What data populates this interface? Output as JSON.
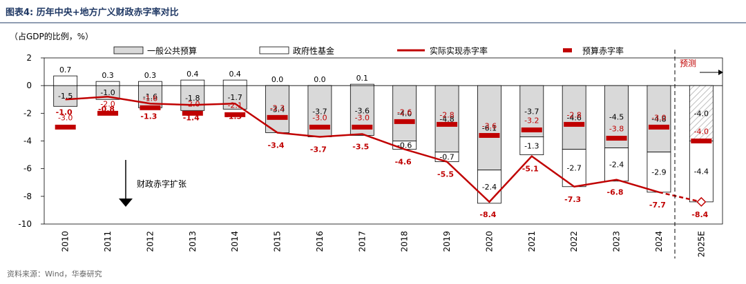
{
  "header": {
    "title": "图表4:  历年中央+地方广义财政赤字率对比"
  },
  "chart_data": {
    "type": "bar",
    "title": "历年中央+地方广义财政赤字率对比",
    "unit_label": "（占GDP的比例，%）",
    "categories": [
      "2010",
      "2011",
      "2012",
      "2013",
      "2014",
      "2015",
      "2016",
      "2017",
      "2018",
      "2019",
      "2020",
      "2021",
      "2022",
      "2023",
      "2024",
      "2025E"
    ],
    "series": [
      {
        "name": "一般公共预算",
        "type": "stacked-bar",
        "values": [
          -1.5,
          -1.0,
          -1.6,
          -1.8,
          -1.7,
          -3.4,
          -3.7,
          -3.6,
          -4.0,
          -4.8,
          -6.1,
          -3.7,
          -4.6,
          -4.5,
          -4.8,
          -4.0
        ],
        "labels": [
          "-1.5",
          "-1.0",
          "-1.6",
          "-1.8",
          "-1.7",
          "-3.4",
          "-3.7",
          "-3.6",
          "-4.0",
          "-4.8",
          "-6.1",
          "-3.7",
          "-4.6",
          "-4.5",
          "-4.8",
          "-4.0"
        ]
      },
      {
        "name": "政府性基金",
        "type": "stacked-bar",
        "values": [
          0.7,
          0.3,
          0.3,
          0.4,
          0.4,
          0.0,
          0.0,
          0.1,
          -0.6,
          -0.7,
          -2.4,
          -1.3,
          -2.7,
          -2.4,
          -2.9,
          -4.4
        ],
        "labels": [
          "0.7",
          "0.3",
          "0.3",
          "0.4",
          "0.4",
          "0.0",
          "0.0",
          "0.1",
          "-0.6",
          "-0.7",
          "-2.4",
          "-1.3",
          "-2.7",
          "-2.4",
          "-2.9",
          "-4.4"
        ]
      },
      {
        "name": "实际实现赤字率",
        "type": "line",
        "values": [
          -1.0,
          -0.8,
          -1.3,
          -1.4,
          -1.3,
          -3.4,
          -3.7,
          -3.5,
          -4.6,
          -5.5,
          -8.4,
          -5.1,
          -7.3,
          -6.8,
          -7.7,
          -8.4
        ],
        "labels": [
          "-1.0",
          "-0.8",
          "-1.3",
          "-1.4",
          "-1.3",
          "-3.4",
          "-3.7",
          "-3.5",
          "-4.6",
          "-5.5",
          "-8.4",
          "-5.1",
          "-7.3",
          "-6.8",
          "-7.7",
          "-8.4"
        ]
      },
      {
        "name": "预算赤字率",
        "type": "marker",
        "values": [
          -3.0,
          -2.0,
          -1.6,
          -2.0,
          -2.1,
          -2.3,
          -3.0,
          -3.0,
          -2.6,
          -2.8,
          -3.6,
          -3.2,
          -2.8,
          -3.8,
          -3.0,
          -4.0
        ],
        "labels": [
          "-3.0",
          "-2.0",
          "-1.6",
          "-2.0",
          "-2.1",
          "-2.3",
          "-3.0",
          "-3.0",
          "-2.6",
          "-2.8",
          "-3.6",
          "-3.2",
          "-2.8",
          "-3.8",
          "-3.0",
          "-4.0"
        ]
      }
    ],
    "ylim": [
      -10,
      2
    ],
    "yticks": [
      "2",
      "0",
      "-2",
      "-4",
      "-6",
      "-8",
      "-10"
    ],
    "ytick_values": [
      2,
      0,
      -2,
      -4,
      -6,
      -8,
      -10
    ],
    "xlabel": "",
    "ylabel": "",
    "annotations": {
      "forecast": "预测",
      "expansion": "财政赤字扩张"
    },
    "colors": {
      "gpb": "#d9d9d9",
      "gov_fund": "#ffffff",
      "actual": "#c00000",
      "budget": "#c00000",
      "hatch": "#a6a6a6",
      "title": "#1f3864",
      "rule": "#1f3864"
    }
  },
  "source": {
    "text": "资料来源：Wind，华泰研究"
  }
}
